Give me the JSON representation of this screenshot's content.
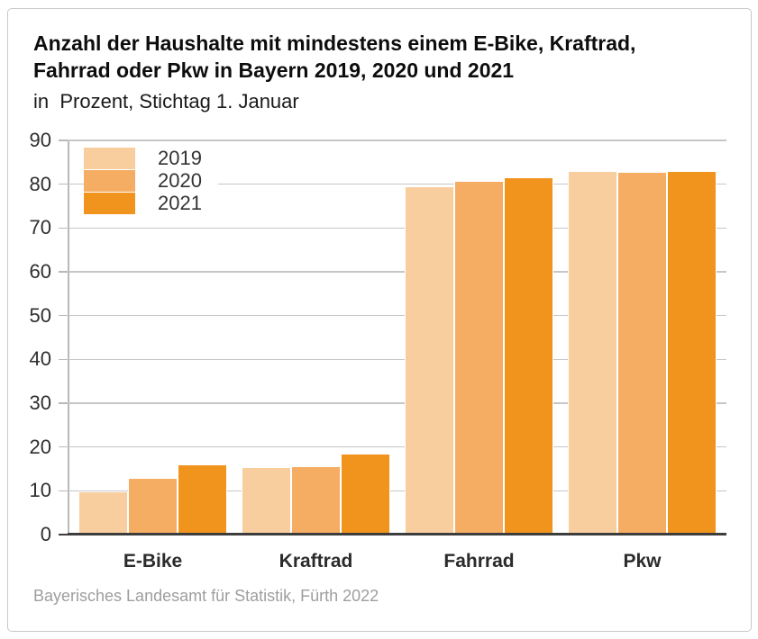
{
  "title": {
    "line1": "Anzahl der Haushalte mit mindestens einem E-Bike, Kraftrad,",
    "line2": "Fahrrad oder Pkw in Bayern 2019, 2020 und 2021"
  },
  "subtitle": "in  Prozent, Stichtag 1. Januar",
  "source": "Bayerisches Landesamt für Statistik, Fürth 2022",
  "chart_data": {
    "type": "bar",
    "title": "Anzahl der Haushalte mit mindestens einem E-Bike, Kraftrad, Fahrrad oder Pkw in Bayern 2019, 2020 und 2021",
    "subtitle": "in Prozent, Stichtag 1. Januar",
    "categories": [
      "E-Bike",
      "Kraftrad",
      "Fahrrad",
      "Pkw"
    ],
    "series": [
      {
        "name": "2019",
        "color": "#f9ce9f",
        "values": [
          9.7,
          15.2,
          79.3,
          82.8
        ]
      },
      {
        "name": "2020",
        "color": "#f5ad63",
        "values": [
          12.7,
          15.4,
          80.5,
          82.6
        ]
      },
      {
        "name": "2021",
        "color": "#f0941e",
        "values": [
          15.9,
          18.3,
          81.3,
          82.8
        ]
      }
    ],
    "xlabel": "",
    "ylabel": "",
    "ylim": [
      0,
      90
    ],
    "ytick_step": 10,
    "grid": true,
    "legend_position": "top-left",
    "style_colors": {
      "gridline": "#c6c6c6",
      "y_axis_line": "#b9b9b9",
      "zero_axis_line": "#3d3d3d",
      "tick_label": "#2e2e2e",
      "category_label": "#2b2b2b",
      "source_text": "#9e9e9e",
      "card_border": "#c9c9c9",
      "background": "#ffffff"
    }
  }
}
